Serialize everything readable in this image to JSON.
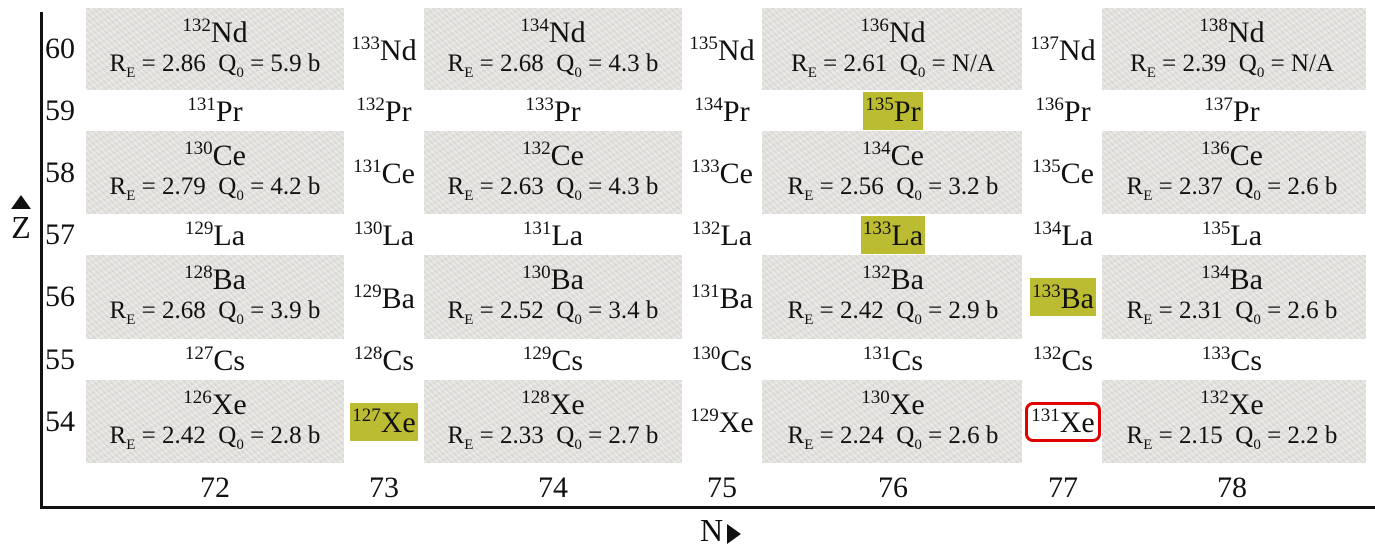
{
  "axes": {
    "z_label": "Z",
    "n_label": "N"
  },
  "z_values": [
    "60",
    "59",
    "58",
    "57",
    "56",
    "55",
    "54"
  ],
  "n_values": [
    "72",
    "73",
    "74",
    "75",
    "76",
    "77",
    "78"
  ],
  "rows": [
    {
      "z": "60",
      "cells": [
        {
          "mass": "132",
          "symbol": "Nd",
          "re": "R",
          "re_sub": "E",
          "re_val": " = 2.86",
          "q": "Q",
          "q_sub": "0",
          "q_val": " = 5.9 b"
        },
        {
          "mass": "133",
          "symbol": "Nd"
        },
        {
          "mass": "134",
          "symbol": "Nd",
          "re": "R",
          "re_sub": "E",
          "re_val": " = 2.68",
          "q": "Q",
          "q_sub": "0",
          "q_val": " = 4.3 b"
        },
        {
          "mass": "135",
          "symbol": "Nd"
        },
        {
          "mass": "136",
          "symbol": "Nd",
          "re": "R",
          "re_sub": "E",
          "re_val": " = 2.61",
          "q": "Q",
          "q_sub": "0",
          "q_val": " = N/A"
        },
        {
          "mass": "137",
          "symbol": "Nd"
        },
        {
          "mass": "138",
          "symbol": "Nd",
          "re": "R",
          "re_sub": "E",
          "re_val": " = 2.39",
          "q": "Q",
          "q_sub": "0",
          "q_val": " = N/A"
        }
      ]
    },
    {
      "z": "59",
      "cells": [
        {
          "mass": "131",
          "symbol": "Pr"
        },
        {
          "mass": "132",
          "symbol": "Pr"
        },
        {
          "mass": "133",
          "symbol": "Pr"
        },
        {
          "mass": "134",
          "symbol": "Pr"
        },
        {
          "mass": "135",
          "symbol": "Pr",
          "highlight": true
        },
        {
          "mass": "136",
          "symbol": "Pr"
        },
        {
          "mass": "137",
          "symbol": "Pr"
        }
      ]
    },
    {
      "z": "58",
      "cells": [
        {
          "mass": "130",
          "symbol": "Ce",
          "re": "R",
          "re_sub": "E",
          "re_val": " = 2.79",
          "q": "Q",
          "q_sub": "0",
          "q_val": " = 4.2 b"
        },
        {
          "mass": "131",
          "symbol": "Ce"
        },
        {
          "mass": "132",
          "symbol": "Ce",
          "re": "R",
          "re_sub": "E",
          "re_val": " = 2.63",
          "q": "Q",
          "q_sub": "0",
          "q_val": " = 4.3 b"
        },
        {
          "mass": "133",
          "symbol": "Ce"
        },
        {
          "mass": "134",
          "symbol": "Ce",
          "re": "R",
          "re_sub": "E",
          "re_val": " = 2.56",
          "q": "Q",
          "q_sub": "0",
          "q_val": " = 3.2 b"
        },
        {
          "mass": "135",
          "symbol": "Ce"
        },
        {
          "mass": "136",
          "symbol": "Ce",
          "re": "R",
          "re_sub": "E",
          "re_val": " = 2.37",
          "q": "Q",
          "q_sub": "0",
          "q_val": " = 2.6 b"
        }
      ]
    },
    {
      "z": "57",
      "cells": [
        {
          "mass": "129",
          "symbol": "La"
        },
        {
          "mass": "130",
          "symbol": "La"
        },
        {
          "mass": "131",
          "symbol": "La"
        },
        {
          "mass": "132",
          "symbol": "La"
        },
        {
          "mass": "133",
          "symbol": "La",
          "highlight": true
        },
        {
          "mass": "134",
          "symbol": "La"
        },
        {
          "mass": "135",
          "symbol": "La"
        }
      ]
    },
    {
      "z": "56",
      "cells": [
        {
          "mass": "128",
          "symbol": "Ba",
          "re": "R",
          "re_sub": "E",
          "re_val": " = 2.68",
          "q": "Q",
          "q_sub": "0",
          "q_val": " = 3.9 b"
        },
        {
          "mass": "129",
          "symbol": "Ba"
        },
        {
          "mass": "130",
          "symbol": "Ba",
          "re": "R",
          "re_sub": "E",
          "re_val": " = 2.52",
          "q": "Q",
          "q_sub": "0",
          "q_val": " = 3.4 b"
        },
        {
          "mass": "131",
          "symbol": "Ba"
        },
        {
          "mass": "132",
          "symbol": "Ba",
          "re": "R",
          "re_sub": "E",
          "re_val": " = 2.42",
          "q": "Q",
          "q_sub": "0",
          "q_val": " = 2.9 b"
        },
        {
          "mass": "133",
          "symbol": "Ba",
          "highlight": true
        },
        {
          "mass": "134",
          "symbol": "Ba",
          "re": "R",
          "re_sub": "E",
          "re_val": " = 2.31",
          "q": "Q",
          "q_sub": "0",
          "q_val": " = 2.6 b"
        }
      ]
    },
    {
      "z": "55",
      "cells": [
        {
          "mass": "127",
          "symbol": "Cs"
        },
        {
          "mass": "128",
          "symbol": "Cs"
        },
        {
          "mass": "129",
          "symbol": "Cs"
        },
        {
          "mass": "130",
          "symbol": "Cs"
        },
        {
          "mass": "131",
          "symbol": "Cs"
        },
        {
          "mass": "132",
          "symbol": "Cs"
        },
        {
          "mass": "133",
          "symbol": "Cs"
        }
      ]
    },
    {
      "z": "54",
      "cells": [
        {
          "mass": "126",
          "symbol": "Xe",
          "re": "R",
          "re_sub": "E",
          "re_val": " = 2.42",
          "q": "Q",
          "q_sub": "0",
          "q_val": " = 2.8 b"
        },
        {
          "mass": "127",
          "symbol": "Xe",
          "highlight": true
        },
        {
          "mass": "128",
          "symbol": "Xe",
          "re": "R",
          "re_sub": "E",
          "re_val": " = 2.33",
          "q": "Q",
          "q_sub": "0",
          "q_val": " = 2.7 b"
        },
        {
          "mass": "129",
          "symbol": "Xe"
        },
        {
          "mass": "130",
          "symbol": "Xe",
          "re": "R",
          "re_sub": "E",
          "re_val": " = 2.24",
          "q": "Q",
          "q_sub": "0",
          "q_val": " = 2.6 b"
        },
        {
          "mass": "131",
          "symbol": "Xe",
          "outlined": true
        },
        {
          "mass": "132",
          "symbol": "Xe",
          "re": "R",
          "re_sub": "E",
          "re_val": " = 2.15",
          "q": "Q",
          "q_sub": "0",
          "q_val": " = 2.2 b"
        }
      ]
    }
  ],
  "colors": {
    "even_even_band": "#e5e3df",
    "highlight": "#bcbc33",
    "outline": "#e00000",
    "axis": "#111111"
  }
}
